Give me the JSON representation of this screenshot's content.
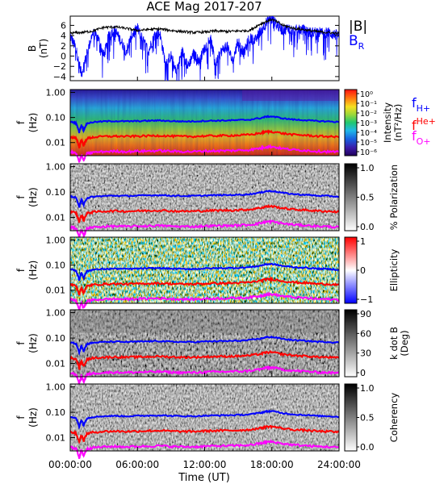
{
  "title": "ACE Mag 2017-207",
  "xlabel": "Time (UT)",
  "xticks": [
    "00:00:00",
    "06:00:00",
    "12:00:00",
    "18:00:00",
    "24:00:00"
  ],
  "legend": {
    "b_total": "|B|",
    "b_r": "B",
    "b_r_sub": "R",
    "f_h": "f",
    "f_h_sub": "H+",
    "f_he": "f",
    "f_he_sup": "He+",
    "f_o": "f",
    "f_o_sub": "O+"
  },
  "colors": {
    "b_total": "#000000",
    "b_r": "#0000ff",
    "f_h": "#0000ff",
    "f_he": "#ff0000",
    "f_o": "#ff00ff"
  },
  "chart_data": [
    {
      "type": "line",
      "panel": "B",
      "ylabel_top": "B",
      "ylabel_unit": "(nT)",
      "yticks": [
        "6",
        "4",
        "2",
        "0",
        "−2",
        "−4"
      ],
      "ylim": [
        -4.8,
        7.8
      ],
      "xlim_hours": [
        0,
        24
      ],
      "series": [
        {
          "name": "|B|",
          "x_hours": [
            0,
            1,
            2,
            3,
            4,
            5,
            6,
            7,
            8,
            9,
            10,
            11,
            12,
            13,
            14,
            15,
            16,
            17,
            18,
            19,
            20,
            21,
            22,
            23,
            24
          ],
          "values": [
            4.5,
            4.6,
            4.9,
            5.6,
            5.7,
            5.4,
            5.0,
            5.2,
            5.3,
            5.0,
            4.8,
            4.6,
            4.7,
            4.9,
            4.8,
            4.9,
            5.0,
            6.3,
            7.2,
            6.0,
            5.4,
            5.1,
            4.8,
            4.6,
            4.4
          ]
        },
        {
          "name": "B_R",
          "x_hours": [
            0,
            0.5,
            1,
            1.5,
            2,
            2.5,
            3,
            3.5,
            4,
            4.5,
            5,
            5.5,
            6,
            6.5,
            7,
            7.5,
            8,
            8.5,
            9,
            9.5,
            10,
            10.5,
            11,
            11.5,
            12,
            12.5,
            13,
            13.5,
            14,
            14.5,
            15,
            15.5,
            16,
            16.5,
            17,
            17.5,
            18,
            18.5,
            19,
            19.5,
            20,
            20.5,
            21,
            21.5,
            22,
            22.5,
            23,
            23.5,
            24
          ],
          "values": [
            4.0,
            1.5,
            -3.5,
            0.5,
            4.5,
            3.5,
            0.0,
            4.5,
            5.0,
            3.0,
            1.0,
            4.0,
            5.5,
            3.0,
            1.0,
            4.0,
            4.5,
            -1.5,
            0.0,
            -3.0,
            1.0,
            -2.0,
            0.5,
            -1.0,
            1.5,
            3.5,
            -1.5,
            1.0,
            2.0,
            -1.0,
            3.0,
            0.5,
            3.5,
            3.0,
            5.0,
            6.5,
            7.2,
            6.0,
            5.0,
            5.5,
            5.0,
            5.2,
            5.0,
            4.5,
            4.8,
            4.5,
            4.6,
            4.2,
            4.0
          ]
        }
      ]
    },
    {
      "type": "heatmap",
      "panel": "intensity",
      "ylabel_top": "f",
      "ylabel_unit": "(Hz)",
      "yticks": [
        "1.00",
        "0.10",
        "0.01"
      ],
      "colorbar_title": "Intensity",
      "colorbar_unit": "(nT²/Hz)",
      "colorbar_ticks": [
        "10⁰",
        "10⁻¹",
        "10⁻²",
        "10⁻³",
        "10⁻⁴",
        "10⁻⁵",
        "10⁻⁶"
      ],
      "colorbar_scale": "log",
      "colorbar_range": [
        1e-06,
        1
      ]
    },
    {
      "type": "heatmap",
      "panel": "polarization",
      "ylabel_top": "f",
      "ylabel_unit": "(Hz)",
      "yticks": [
        "1.00",
        "0.10",
        "0.01"
      ],
      "colorbar_title": "% Polarization",
      "colorbar_ticks": [
        "1.0",
        "0.5",
        "0.0"
      ],
      "colorbar_range": [
        0,
        1
      ]
    },
    {
      "type": "heatmap",
      "panel": "ellipticity",
      "ylabel_top": "f",
      "ylabel_unit": "(Hz)",
      "yticks": [
        "1.00",
        "0.10",
        "0.01"
      ],
      "colorbar_title": "Ellipticity",
      "colorbar_ticks": [
        "1",
        "0",
        "−1"
      ],
      "colorbar_range": [
        -1,
        1
      ]
    },
    {
      "type": "heatmap",
      "panel": "kdotb",
      "ylabel_top": "f",
      "ylabel_unit": "(Hz)",
      "yticks": [
        "1.00",
        "0.10",
        "0.01"
      ],
      "colorbar_title": "k dot B",
      "colorbar_unit": "(Deg)",
      "colorbar_ticks": [
        "90",
        "60",
        "30",
        "0"
      ],
      "colorbar_range": [
        0,
        90
      ]
    },
    {
      "type": "heatmap",
      "panel": "coherency",
      "ylabel_top": "f",
      "ylabel_unit": "(Hz)",
      "yticks": [
        "1.00",
        "0.10",
        "0.01"
      ],
      "colorbar_title": "Coherency",
      "colorbar_ticks": [
        "1.0",
        "0.5",
        "0.0"
      ],
      "colorbar_range": [
        0,
        1
      ]
    }
  ],
  "gyrofrequencies": {
    "x_hours": [
      0,
      0.5,
      0.8,
      1.0,
      1.2,
      1.5,
      2,
      3,
      4,
      5,
      6,
      7,
      8,
      9,
      10,
      11,
      12,
      13,
      14,
      15,
      16,
      17,
      17.5,
      18,
      19,
      20,
      21,
      22,
      23,
      24
    ],
    "f_h_hz": [
      0.068,
      0.06,
      0.025,
      0.05,
      0.03,
      0.058,
      0.065,
      0.07,
      0.072,
      0.07,
      0.072,
      0.074,
      0.076,
      0.072,
      0.07,
      0.07,
      0.073,
      0.075,
      0.076,
      0.078,
      0.082,
      0.095,
      0.108,
      0.11,
      0.092,
      0.082,
      0.078,
      0.072,
      0.07,
      0.066
    ]
  }
}
